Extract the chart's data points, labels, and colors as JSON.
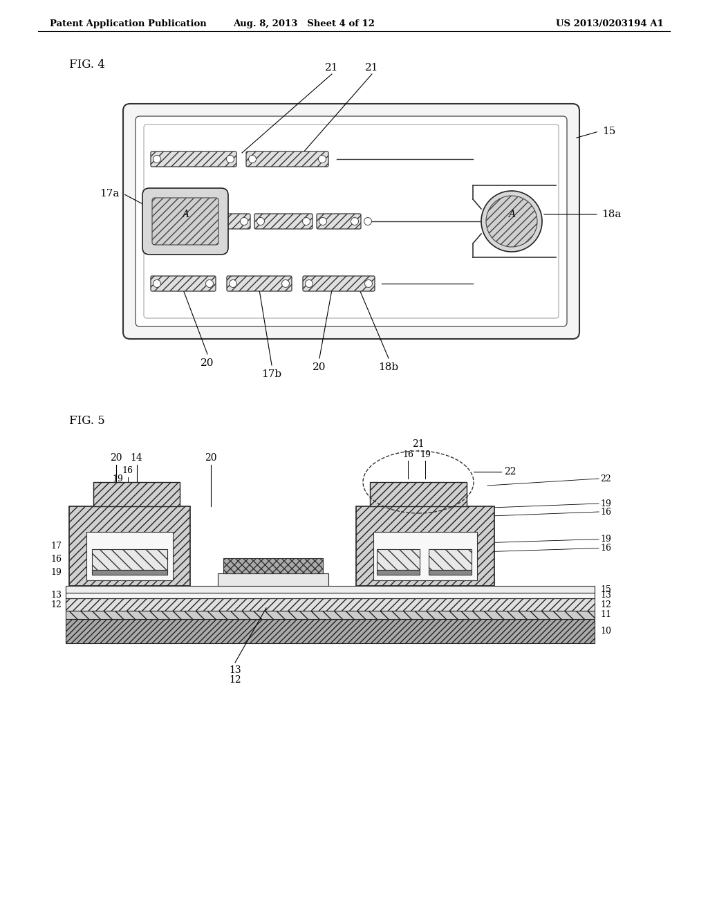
{
  "header_left": "Patent Application Publication",
  "header_mid": "Aug. 8, 2013   Sheet 4 of 12",
  "header_right": "US 2013/0203194 A1",
  "fig4_label": "FIG. 4",
  "fig5_label": "FIG. 5",
  "bg_color": "#ffffff"
}
